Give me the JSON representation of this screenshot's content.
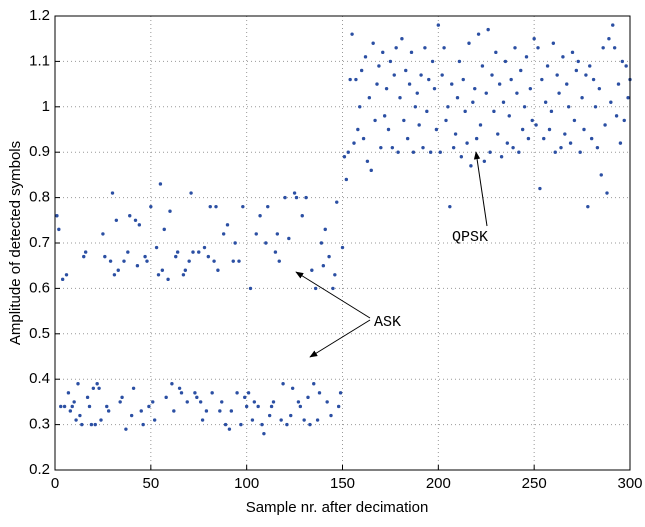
{
  "chart_data": {
    "type": "scatter",
    "xlabel": "Sample nr. after decimation",
    "ylabel": "Amplitude of detected symbols",
    "xlim": [
      0,
      300
    ],
    "ylim": [
      0.2,
      1.2
    ],
    "xticks": [
      0,
      50,
      100,
      150,
      200,
      250,
      300
    ],
    "yticks": [
      0.2,
      0.3,
      0.4,
      0.5,
      0.6,
      0.7,
      0.8,
      0.9,
      1,
      1.1,
      1.2
    ],
    "grid": true,
    "annotations": [
      "ASK",
      "QPSK"
    ],
    "series": [
      {
        "color": "#2b4fa3",
        "x": [
          1,
          2,
          3,
          4,
          5,
          6,
          7,
          8,
          9,
          10,
          11,
          12,
          13,
          14,
          15,
          16,
          17,
          18,
          19,
          20,
          21,
          22,
          23,
          24,
          25,
          26,
          27,
          28,
          29,
          30,
          31,
          32,
          33,
          34,
          35,
          36,
          37,
          38,
          39,
          40,
          41,
          42,
          43,
          44,
          45,
          46,
          47,
          48,
          49,
          50,
          51,
          52,
          53,
          54,
          55,
          56,
          57,
          58,
          59,
          60,
          61,
          62,
          63,
          64,
          65,
          66,
          67,
          68,
          69,
          70,
          71,
          72,
          73,
          74,
          75,
          76,
          77,
          78,
          79,
          80,
          81,
          82,
          83,
          84,
          85,
          86,
          87,
          88,
          89,
          90,
          91,
          92,
          93,
          94,
          95,
          96,
          97,
          98,
          99,
          100,
          101,
          102,
          103,
          104,
          105,
          106,
          107,
          108,
          109,
          110,
          111,
          112,
          113,
          114,
          115,
          116,
          117,
          118,
          119,
          120,
          121,
          122,
          123,
          124,
          125,
          126,
          127,
          128,
          129,
          130,
          131,
          132,
          133,
          134,
          135,
          136,
          137,
          138,
          139,
          140,
          141,
          142,
          143,
          144,
          145,
          146,
          147,
          148,
          149,
          150,
          151,
          152,
          153,
          154,
          155,
          156,
          157,
          158,
          159,
          160,
          161,
          162,
          163,
          164,
          165,
          166,
          167,
          168,
          169,
          170,
          171,
          172,
          173,
          174,
          175,
          176,
          177,
          178,
          179,
          180,
          181,
          182,
          183,
          184,
          185,
          186,
          187,
          188,
          189,
          190,
          191,
          192,
          193,
          194,
          195,
          196,
          197,
          198,
          199,
          200,
          201,
          202,
          203,
          204,
          205,
          206,
          207,
          208,
          209,
          210,
          211,
          212,
          213,
          214,
          215,
          216,
          217,
          218,
          219,
          220,
          221,
          222,
          223,
          224,
          225,
          226,
          227,
          228,
          229,
          230,
          231,
          232,
          233,
          234,
          235,
          236,
          237,
          238,
          239,
          240,
          241,
          242,
          243,
          244,
          245,
          246,
          247,
          248,
          249,
          250,
          251,
          252,
          253,
          254,
          255,
          256,
          257,
          258,
          259,
          260,
          261,
          262,
          263,
          264,
          265,
          266,
          267,
          268,
          269,
          270,
          271,
          272,
          273,
          274,
          275,
          276,
          277,
          278,
          279,
          280,
          281,
          282,
          283,
          284,
          285,
          286,
          287,
          288,
          289,
          290,
          291,
          292,
          293,
          294,
          295,
          296,
          297,
          298,
          299,
          300
        ],
        "values": [
          0.76,
          0.73,
          0.34,
          0.62,
          0.34,
          0.63,
          0.37,
          0.33,
          0.34,
          0.35,
          0.31,
          0.39,
          0.32,
          0.3,
          0.67,
          0.68,
          0.36,
          0.34,
          0.3,
          0.38,
          0.3,
          0.39,
          0.38,
          0.31,
          0.72,
          0.67,
          0.34,
          0.33,
          0.66,
          0.81,
          0.63,
          0.75,
          0.64,
          0.35,
          0.36,
          0.66,
          0.29,
          0.68,
          0.76,
          0.32,
          0.38,
          0.75,
          0.65,
          0.74,
          0.33,
          0.3,
          0.67,
          0.66,
          0.34,
          0.78,
          0.35,
          0.31,
          0.69,
          0.63,
          0.83,
          0.64,
          0.73,
          0.36,
          0.62,
          0.77,
          0.39,
          0.33,
          0.67,
          0.68,
          0.38,
          0.37,
          0.63,
          0.64,
          0.35,
          0.66,
          0.81,
          0.68,
          0.37,
          0.36,
          0.68,
          0.35,
          0.31,
          0.69,
          0.33,
          0.67,
          0.78,
          0.37,
          0.66,
          0.78,
          0.64,
          0.33,
          0.35,
          0.72,
          0.3,
          0.74,
          0.29,
          0.33,
          0.66,
          0.7,
          0.37,
          0.66,
          0.3,
          0.78,
          0.36,
          0.34,
          0.37,
          0.6,
          0.31,
          0.35,
          0.72,
          0.34,
          0.76,
          0.3,
          0.28,
          0.7,
          0.78,
          0.32,
          0.34,
          0.35,
          0.68,
          0.72,
          0.66,
          0.31,
          0.39,
          0.8,
          0.3,
          0.71,
          0.32,
          0.38,
          0.81,
          0.8,
          0.35,
          0.34,
          0.76,
          0.31,
          0.8,
          0.36,
          0.3,
          0.64,
          0.39,
          0.6,
          0.31,
          0.37,
          0.7,
          0.65,
          0.73,
          0.35,
          0.67,
          0.32,
          0.6,
          0.63,
          0.79,
          0.34,
          0.37,
          0.69,
          0.89,
          0.84,
          0.9,
          1.06,
          1.16,
          0.92,
          1.06,
          0.95,
          1.0,
          1.08,
          0.93,
          1.11,
          0.88,
          1.02,
          0.86,
          1.14,
          0.97,
          1.05,
          1.09,
          0.91,
          1.12,
          0.98,
          1.04,
          0.95,
          1.1,
          0.91,
          1.07,
          1.13,
          0.9,
          1.02,
          1.15,
          0.97,
          1.08,
          0.93,
          1.05,
          1.12,
          0.9,
          1.0,
          1.03,
          0.96,
          1.07,
          0.91,
          1.13,
          0.99,
          1.06,
          0.9,
          1.1,
          1.04,
          0.95,
          1.18,
          0.9,
          1.07,
          1.13,
          0.97,
          1.0,
          0.78,
          1.05,
          0.91,
          0.94,
          1.02,
          1.1,
          0.89,
          1.06,
          0.99,
          0.92,
          1.14,
          0.87,
          1.01,
          1.04,
          0.93,
          1.16,
          0.96,
          1.09,
          0.88,
          1.03,
          1.17,
          0.9,
          1.07,
          0.99,
          1.12,
          0.94,
          1.05,
          0.89,
          1.01,
          1.1,
          0.92,
          0.98,
          1.06,
          0.91,
          1.13,
          1.03,
          0.9,
          1.08,
          0.95,
          1.0,
          1.11,
          0.93,
          1.04,
          0.97,
          1.15,
          0.96,
          1.13,
          0.82,
          1.06,
          0.93,
          1.01,
          1.09,
          0.95,
          0.99,
          1.14,
          0.9,
          1.07,
          1.03,
          0.91,
          1.11,
          0.94,
          1.05,
          1.0,
          0.92,
          1.12,
          0.97,
          1.08,
          1.1,
          0.9,
          1.02,
          0.95,
          1.07,
          0.78,
          1.09,
          0.93,
          1.06,
          1.0,
          0.91,
          1.04,
          0.85,
          1.13,
          0.96,
          0.81,
          1.15,
          1.01,
          1.18,
          1.13,
          0.98,
          1.05,
          0.92,
          1.1,
          0.97,
          1.09,
          1.02,
          1.06
        ]
      }
    ]
  }
}
